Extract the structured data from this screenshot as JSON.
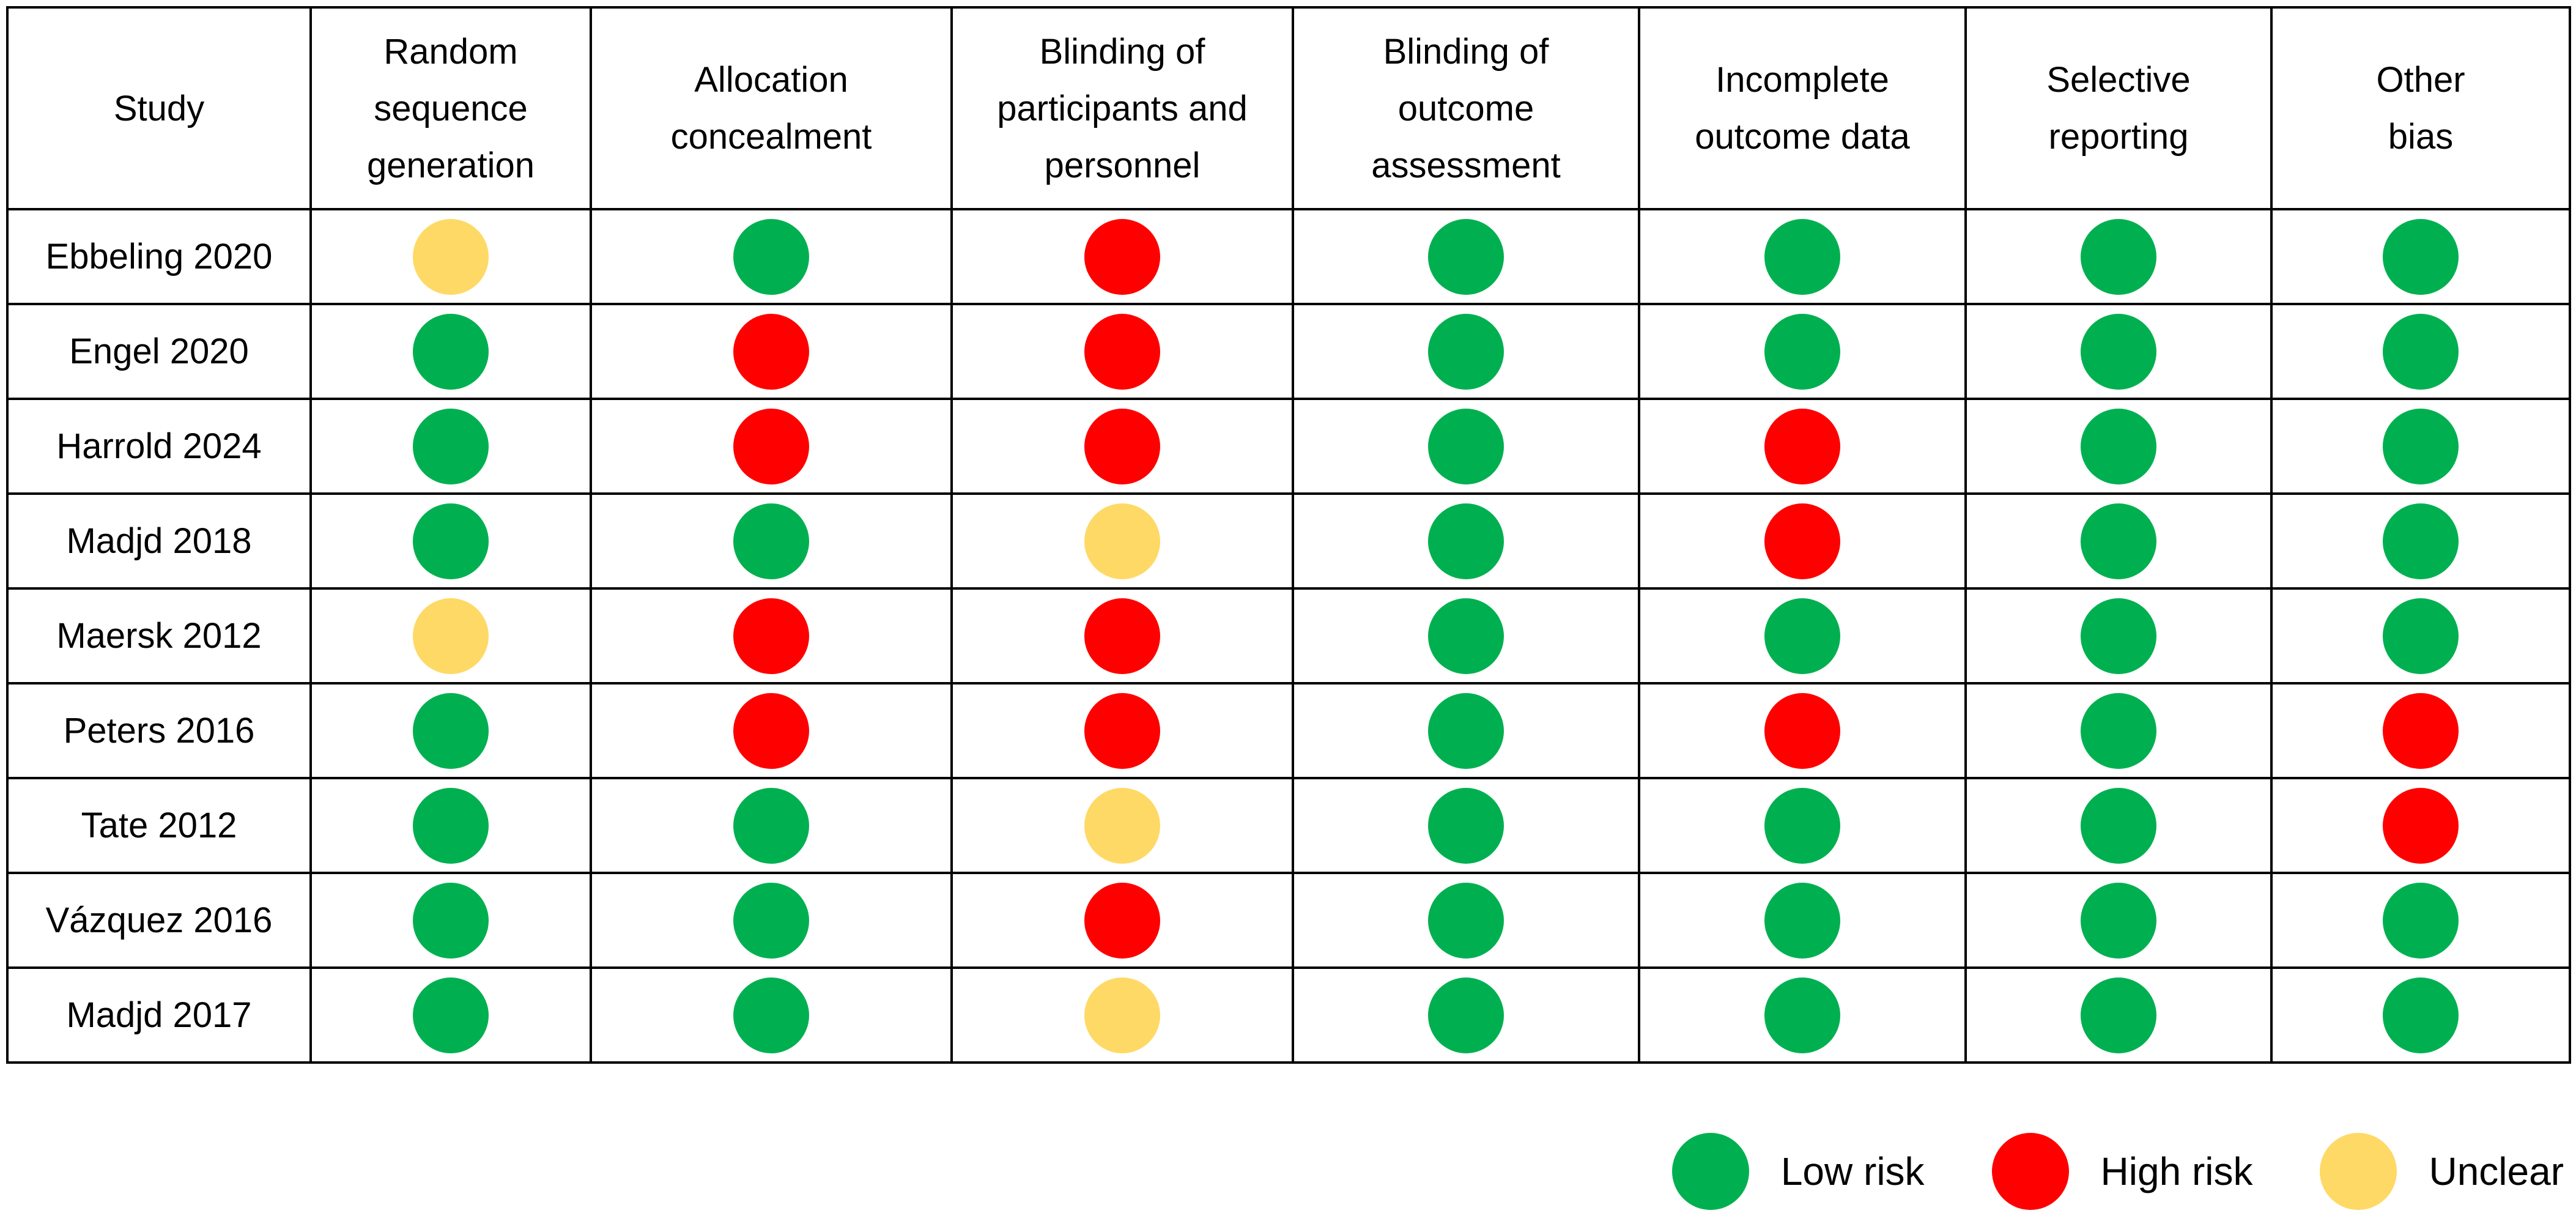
{
  "colors": {
    "low": "#00B050",
    "high": "#FF0000",
    "unclear": "#FFD966"
  },
  "table": {
    "columns": [
      "Study",
      "Random\nsequence\ngeneration",
      "Allocation\nconcealment",
      "Blinding of\nparticipants and\npersonnel",
      "Blinding of\noutcome\nassessment",
      "Incomplete\noutcome data",
      "Selective\nreporting",
      "Other\nbias"
    ],
    "rows": [
      {
        "study": "Ebbeling 2020",
        "ratings": [
          "unclear",
          "low",
          "high",
          "low",
          "low",
          "low",
          "low"
        ]
      },
      {
        "study": "Engel 2020",
        "ratings": [
          "low",
          "high",
          "high",
          "low",
          "low",
          "low",
          "low"
        ]
      },
      {
        "study": "Harrold 2024",
        "ratings": [
          "low",
          "high",
          "high",
          "low",
          "high",
          "low",
          "low"
        ]
      },
      {
        "study": "Madjd 2018",
        "ratings": [
          "low",
          "low",
          "unclear",
          "low",
          "high",
          "low",
          "low"
        ]
      },
      {
        "study": "Maersk 2012",
        "ratings": [
          "unclear",
          "high",
          "high",
          "low",
          "low",
          "low",
          "low"
        ]
      },
      {
        "study": "Peters 2016",
        "ratings": [
          "low",
          "high",
          "high",
          "low",
          "high",
          "low",
          "high"
        ]
      },
      {
        "study": "Tate 2012",
        "ratings": [
          "low",
          "low",
          "unclear",
          "low",
          "low",
          "low",
          "high"
        ]
      },
      {
        "study": "Vázquez 2016",
        "ratings": [
          "low",
          "low",
          "high",
          "low",
          "low",
          "low",
          "low"
        ]
      },
      {
        "study": "Madjd 2017",
        "ratings": [
          "low",
          "low",
          "unclear",
          "low",
          "low",
          "low",
          "low"
        ]
      }
    ]
  },
  "legend": [
    {
      "key": "low",
      "label": "Low risk"
    },
    {
      "key": "high",
      "label": "High risk"
    },
    {
      "key": "unclear",
      "label": "Unclear"
    }
  ]
}
